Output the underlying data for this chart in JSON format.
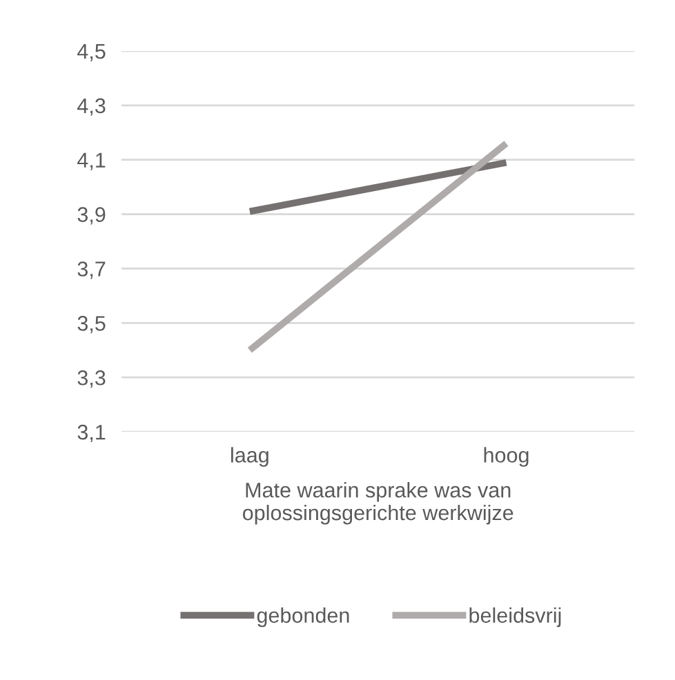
{
  "chart_data": {
    "type": "line",
    "categories": [
      "laag",
      "hoog"
    ],
    "series": [
      {
        "name": "gebonden",
        "color": "#767171",
        "values": [
          3.91,
          4.09
        ]
      },
      {
        "name": "beleidsvrij",
        "color": "#afabab",
        "values": [
          3.4,
          4.16
        ]
      }
    ],
    "xlabel": "Mate waarin sprake was van\noplossingsgerichte werkwijze",
    "ylim": [
      3.1,
      4.5
    ],
    "yticks": [
      {
        "value": 3.1,
        "label": "3,1"
      },
      {
        "value": 3.3,
        "label": "3,3"
      },
      {
        "value": 3.5,
        "label": "3,5"
      },
      {
        "value": 3.7,
        "label": "3,7"
      },
      {
        "value": 3.9,
        "label": "3,9"
      },
      {
        "value": 4.1,
        "label": "4,1"
      },
      {
        "value": 4.3,
        "label": "4,3"
      },
      {
        "value": 4.5,
        "label": "4,5"
      }
    ],
    "grid": "y",
    "legend": "bottom",
    "marker": "none",
    "line_style": "solid"
  }
}
